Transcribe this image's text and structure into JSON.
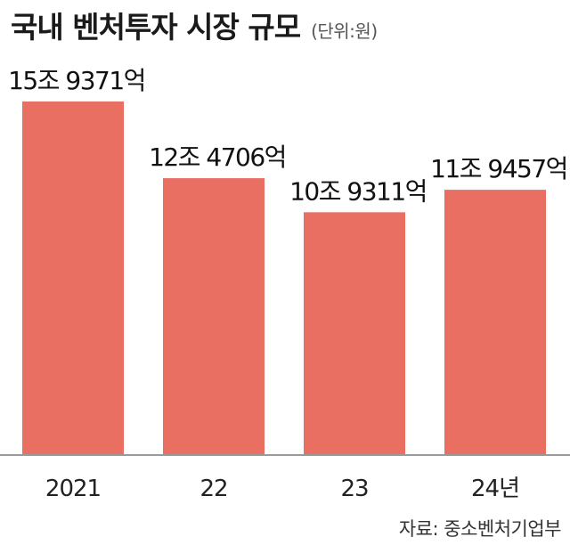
{
  "title": "국내 벤처투자 시장 규모",
  "unit": "(단위:원)",
  "source": "자료: 중소벤처기업부",
  "chart_data": {
    "type": "bar",
    "categories": [
      "2021",
      "22",
      "23",
      "24년"
    ],
    "values": [
      15.9371,
      12.4706,
      10.9311,
      11.9457
    ],
    "value_unit": "조원",
    "data_labels": [
      "15조 9371억",
      "12조 4706억",
      "10조 9311억",
      "11조 9457억"
    ],
    "title": "국내 벤처투자 시장 규모",
    "xlabel": "",
    "ylabel": "",
    "ylim": [
      0,
      16.9
    ],
    "grid": false,
    "legend": "none",
    "bar_color": "#ea6f63",
    "baseline_color": "#9a9a9a"
  }
}
